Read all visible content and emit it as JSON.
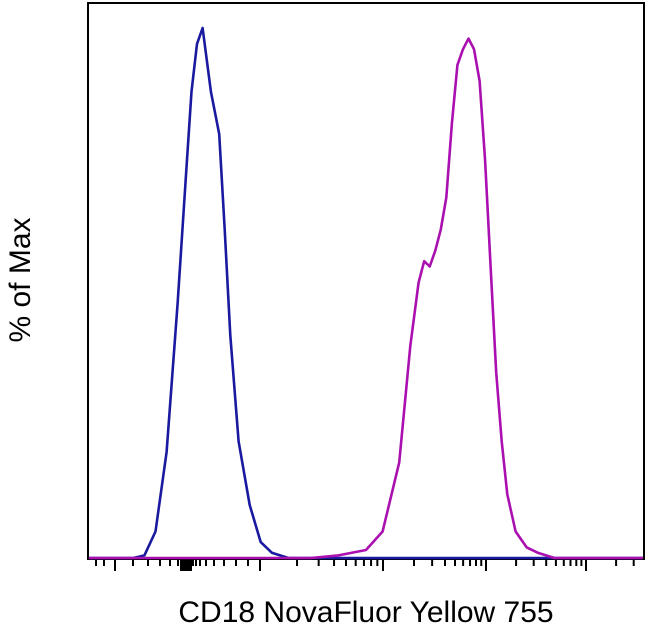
{
  "chart_data": {
    "type": "line",
    "title": "",
    "xlabel": "CD18 NovaFluor Yellow 755",
    "ylabel": "% of Max",
    "xscale": "log",
    "xlim": [
      0,
      100
    ],
    "ylim": [
      0,
      100
    ],
    "grid": false,
    "legend": "none",
    "tick_labels_shown": false,
    "series": [
      {
        "color": "#1a1aa0",
        "x": [
          0,
          5,
          8,
          10,
          12,
          14,
          16,
          17.5,
          18.5,
          19.5,
          20.5,
          22,
          23.5,
          24.5,
          25.5,
          27,
          29,
          31,
          33,
          36,
          40,
          50,
          100
        ],
        "y": [
          0,
          0,
          0,
          0.5,
          5,
          20,
          48,
          72,
          88,
          97,
          100,
          88,
          80,
          62,
          42,
          22,
          10,
          3,
          1,
          0,
          0,
          0,
          0
        ]
      },
      {
        "color": "#aa10b0",
        "x": [
          0,
          40,
          45,
          50,
          53,
          56,
          58,
          59.5,
          60.5,
          61.5,
          62.5,
          63.5,
          64.5,
          65.5,
          66.5,
          67.5,
          68.5,
          69.5,
          70.5,
          71.5,
          72.5,
          73.5,
          74.5,
          75.5,
          77,
          79,
          81,
          84,
          88,
          95,
          100
        ],
        "y": [
          0,
          0,
          0.5,
          1.5,
          5,
          18,
          40,
          52,
          56,
          55,
          58,
          62,
          68,
          82,
          93,
          96,
          98,
          96,
          90,
          75,
          55,
          35,
          22,
          12,
          5,
          2,
          1,
          0,
          0,
          0,
          0
        ]
      }
    ]
  }
}
